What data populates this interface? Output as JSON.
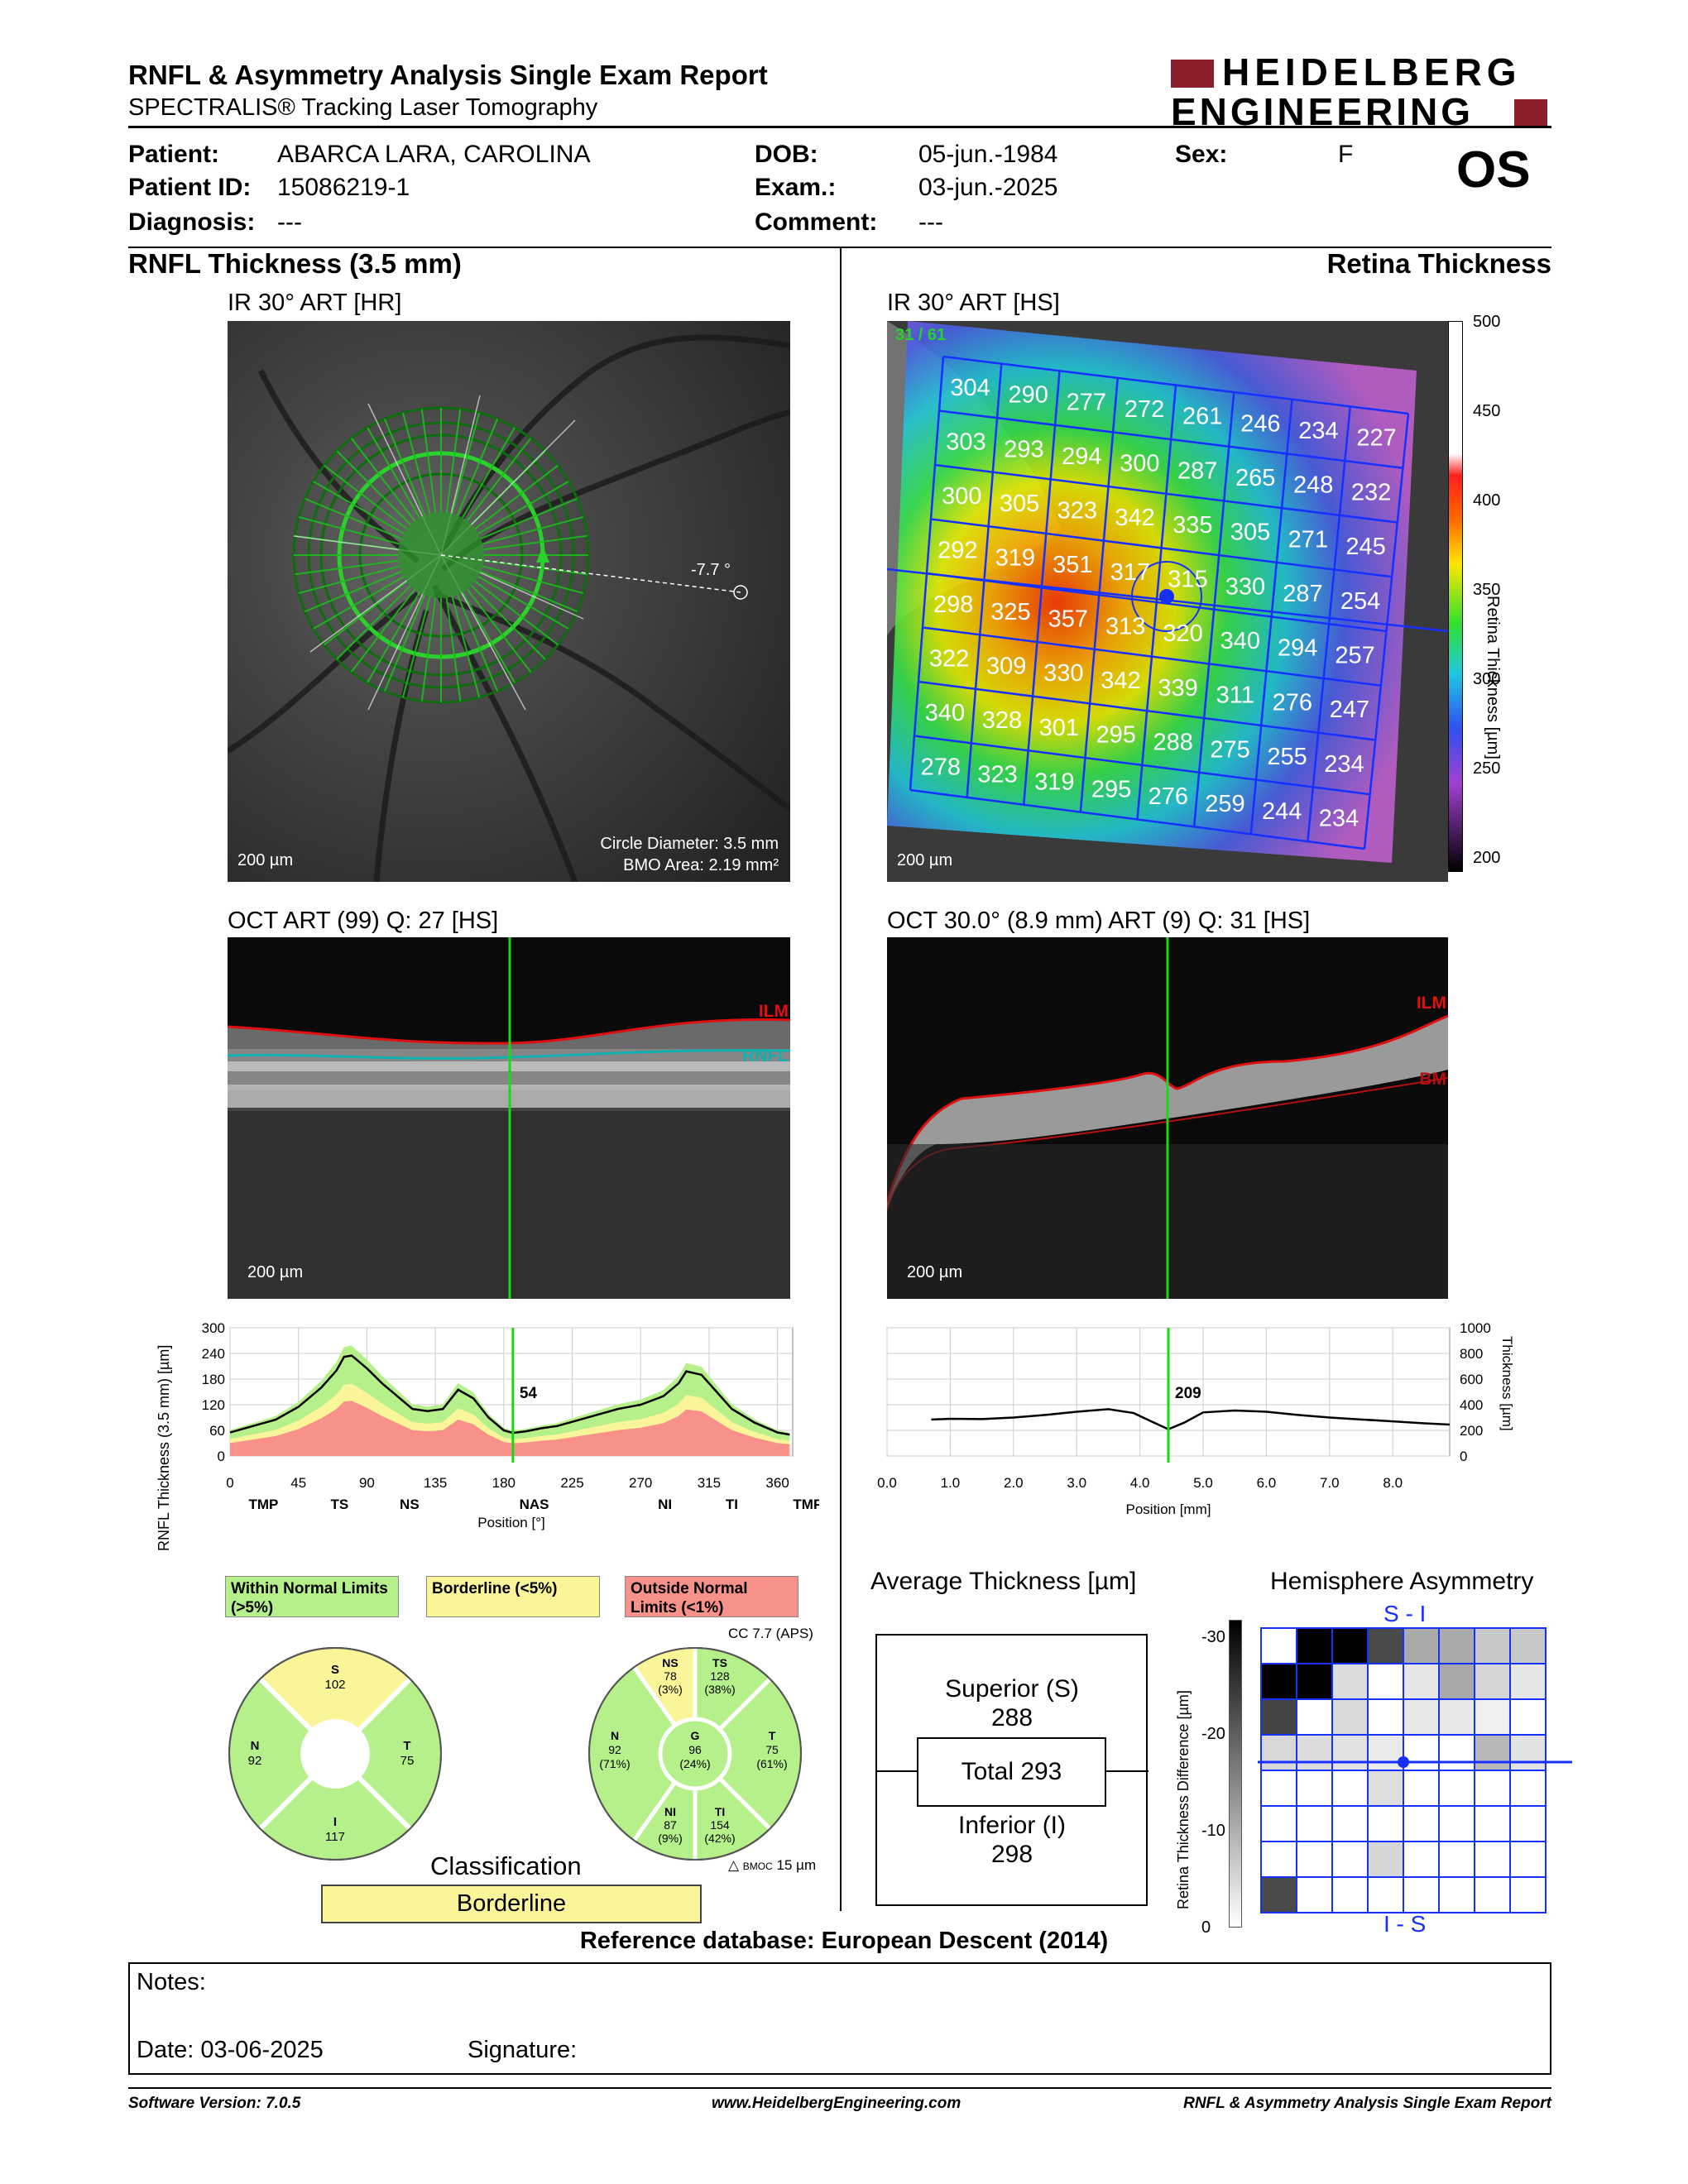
{
  "header": {
    "title": "RNFL & Asymmetry Analysis Single Exam Report",
    "subtitle": "SPECTRALIS® Tracking Laser Tomography",
    "logo_line1": "HEIDELBERG",
    "logo_line2": "ENGINEERING",
    "eye": "OS"
  },
  "patient": {
    "patient_label": "Patient:",
    "patient": "ABARCA LARA, CAROLINA",
    "id_label": "Patient ID:",
    "id": "15086219-1",
    "diagnosis_label": "Diagnosis:",
    "diagnosis": "---",
    "dob_label": "DOB:",
    "dob": "05-jun.-1984",
    "exam_label": "Exam.:",
    "exam": "03-jun.-2025",
    "comment_label": "Comment:",
    "comment": "---",
    "sex_label": "Sex:",
    "sex": "F"
  },
  "left": {
    "section_title": "RNFL Thickness (3.5 mm)",
    "ir_title": "IR 30° ART [HR]",
    "ir_scale": "200 µm",
    "ir_angle": "-7.7 °",
    "circle_diameter": "Circle Diameter: 3.5 mm",
    "bmo_area": "BMO Area: 2.19 mm²",
    "oct_title": "OCT ART (99) Q: 27 [HS]",
    "oct_scale": "200 µm",
    "ilm_label": "ILM",
    "rnfl_label": "RNFL"
  },
  "right": {
    "section_title": "Retina Thickness",
    "ir_title": "IR 30° ART [HS]",
    "ir_scale": "200 µm",
    "frame_counter": "31 / 61",
    "colorbar_ticks": [
      "500",
      "450",
      "400",
      "350",
      "300",
      "250",
      "200"
    ],
    "colorbar_label": "Retina Thickness [µm]",
    "grid_values": [
      [
        304,
        290,
        277,
        272,
        261,
        246,
        234,
        227
      ],
      [
        303,
        293,
        294,
        300,
        287,
        265,
        248,
        232
      ],
      [
        300,
        305,
        323,
        342,
        335,
        305,
        271,
        245
      ],
      [
        292,
        319,
        351,
        317,
        315,
        330,
        287,
        254
      ],
      [
        298,
        325,
        357,
        313,
        320,
        340,
        294,
        257
      ],
      [
        322,
        309,
        330,
        342,
        339,
        311,
        276,
        247
      ],
      [
        340,
        328,
        301,
        295,
        288,
        275,
        255,
        234
      ],
      [
        278,
        323,
        319,
        295,
        276,
        259,
        244,
        234
      ]
    ],
    "oct_title": "OCT 30.0° (8.9 mm) ART (9) Q: 31 [HS]",
    "oct_scale": "200 µm",
    "ilm_label": "ILM",
    "bm_label": "BM"
  },
  "chart_data": [
    {
      "type": "line",
      "ylabel": "RNFL Thickness (3.5 mm) [µm]",
      "xlabel": "Position [°]",
      "xlim": [
        0,
        370
      ],
      "ylim": [
        0,
        300
      ],
      "x_ticks": [
        "0",
        "45",
        "90",
        "135",
        "180",
        "225",
        "270",
        "315",
        "360"
      ],
      "y_ticks": [
        "0",
        "60",
        "120",
        "180",
        "240",
        "300"
      ],
      "sector_labels": [
        "TMP",
        "TS",
        "NS",
        "NAS",
        "NI",
        "TI",
        "TMP"
      ],
      "cursor_value": "54",
      "cursor_x": 186,
      "x": [
        0,
        15,
        30,
        45,
        60,
        70,
        75,
        80,
        90,
        100,
        110,
        120,
        130,
        140,
        150,
        160,
        170,
        180,
        186,
        195,
        205,
        215,
        225,
        240,
        255,
        270,
        285,
        295,
        300,
        310,
        320,
        330,
        345,
        360,
        368
      ],
      "series": [
        {
          "values": [
            55,
            70,
            85,
            115,
            160,
            200,
            232,
            235,
            205,
            170,
            140,
            110,
            105,
            110,
            155,
            135,
            90,
            60,
            54,
            58,
            65,
            70,
            80,
            95,
            110,
            120,
            140,
            170,
            198,
            190,
            150,
            110,
            78,
            55,
            50
          ]
        }
      ]
    },
    {
      "type": "line",
      "ylabel": "Thickness [µm]",
      "xlabel": "Position [mm]",
      "xlim": [
        0,
        8.9
      ],
      "ylim": [
        0,
        1000
      ],
      "x_ticks": [
        "0.0",
        "1.0",
        "2.0",
        "3.0",
        "4.0",
        "5.0",
        "6.0",
        "7.0",
        "8.0"
      ],
      "y_ticks": [
        "0",
        "200",
        "400",
        "600",
        "800",
        "1000"
      ],
      "cursor_value": "209",
      "cursor_x": 4.45,
      "x": [
        0.7,
        1.0,
        1.5,
        2.0,
        2.5,
        3.0,
        3.5,
        3.9,
        4.2,
        4.45,
        4.7,
        5.0,
        5.5,
        6.0,
        6.5,
        7.0,
        7.5,
        8.0,
        8.5,
        8.9
      ],
      "series": [
        {
          "values": [
            285,
            290,
            288,
            300,
            320,
            345,
            365,
            335,
            265,
            209,
            260,
            340,
            355,
            345,
            320,
            300,
            285,
            270,
            255,
            245
          ]
        }
      ]
    }
  ],
  "legend": {
    "within": "Within Normal Limits (>5%)",
    "borderline": "Borderline (<5%)",
    "outside": "Outside Normal Limits (<1%)",
    "within_color": "#b6f08a",
    "borderline_color": "#fbf59a",
    "outside_color": "#f7918a"
  },
  "sectors_4": {
    "S": "102",
    "N": "92",
    "T": "75",
    "I": "117"
  },
  "sectors_6": {
    "cc": "CC 7.7 (APS)",
    "NS_v": "78",
    "NS_p": "(3%)",
    "TS_v": "128",
    "TS_p": "(38%)",
    "N_v": "92",
    "N_p": "(71%)",
    "G_v": "96",
    "G_p": "(24%)",
    "T_v": "75",
    "T_p": "(61%)",
    "NI_v": "87",
    "NI_p": "(9%)",
    "TI_v": "154",
    "TI_p": "(42%)",
    "bmoc": "15 µm"
  },
  "classification": {
    "title": "Classification",
    "value": "Borderline"
  },
  "average": {
    "title": "Average Thickness [µm]",
    "superior_label": "Superior (S)",
    "superior": "288",
    "total": "Total 293",
    "inferior_label": "Inferior (I)",
    "inferior": "298"
  },
  "asymmetry": {
    "title": "Hemisphere Asymmetry",
    "top_label": "S - I",
    "bottom_label": "I - S",
    "scale_label": "Retina Thickness Difference [µm]",
    "scale_ticks": [
      "-30",
      "-20",
      "-10",
      "0"
    ],
    "grid_shades": [
      [
        "#ffffff",
        "#000000",
        "#000000",
        "#4a4a4a",
        "#aaaaaa",
        "#aaaaaa",
        "#c8c8c8",
        "#c8c8c8"
      ],
      [
        "#000000",
        "#000000",
        "#dcdcdc",
        "#ffffff",
        "#e6e6e6",
        "#a8a8a8",
        "#d6d6d6",
        "#e6e6e6"
      ],
      [
        "#444444",
        "#ffffff",
        "#dadada",
        "#ffffff",
        "#e8e8e8",
        "#e8e8e8",
        "#f0f0f0",
        "#ffffff"
      ],
      [
        "#d8d8d8",
        "#dcdcdc",
        "#e2e2e2",
        "#eaeaea",
        "#ffffff",
        "#ffffff",
        "#b8b8b8",
        "#e2e2e2"
      ],
      [
        "#ffffff",
        "#ffffff",
        "#ffffff",
        "#dddddd",
        "#ffffff",
        "#ffffff",
        "#ffffff",
        "#ffffff"
      ],
      [
        "#ffffff",
        "#ffffff",
        "#ffffff",
        "#ffffff",
        "#ffffff",
        "#ffffff",
        "#ffffff",
        "#ffffff"
      ],
      [
        "#ffffff",
        "#ffffff",
        "#ffffff",
        "#d6d6d6",
        "#ffffff",
        "#ffffff",
        "#ffffff",
        "#ffffff"
      ],
      [
        "#4a4a4a",
        "#ffffff",
        "#ffffff",
        "#ffffff",
        "#ffffff",
        "#ffffff",
        "#ffffff",
        "#ffffff"
      ]
    ]
  },
  "reference": "Reference database: European Descent (2014)",
  "notes": {
    "label": "Notes:",
    "date": "Date: 03-06-2025",
    "signature": "Signature:"
  },
  "footer": {
    "version": "Software Version: 7.0.5",
    "url": "www.HeidelbergEngineering.com",
    "report": "RNFL & Asymmetry Analysis Single Exam Report"
  }
}
